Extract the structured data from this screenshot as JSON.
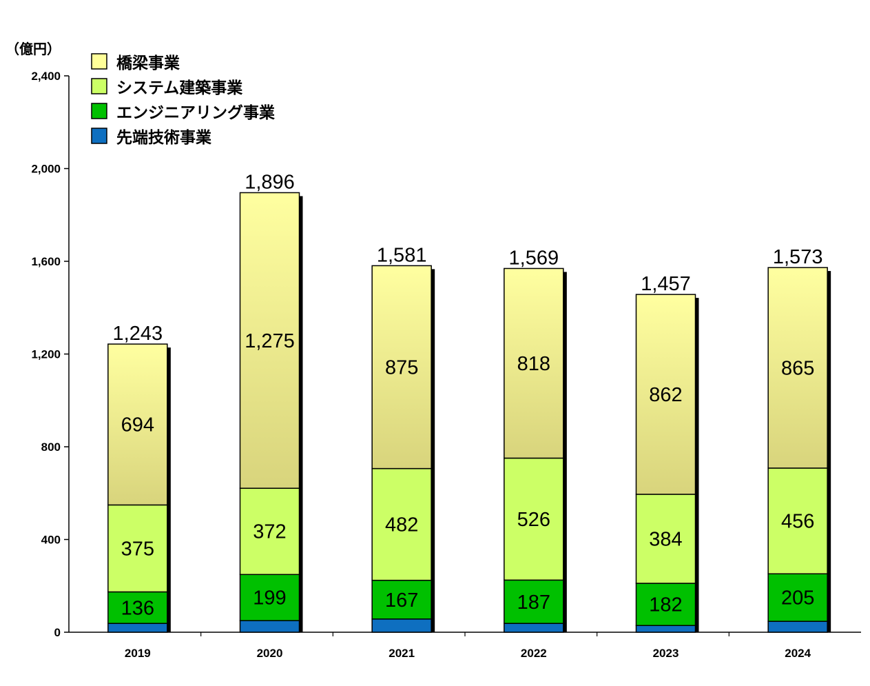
{
  "chart_data": {
    "type": "bar",
    "stacked": true,
    "unit_label": "（億円）",
    "categories": [
      "2019",
      "2020",
      "2021",
      "2022",
      "2023",
      "2024"
    ],
    "series": [
      {
        "name": "先端技術事業",
        "color": "#0e6fc0",
        "values": [
          38,
          50,
          57,
          38,
          29,
          47
        ]
      },
      {
        "name": "エンジニアリング事業",
        "color": "#00c000",
        "values": [
          136,
          199,
          167,
          187,
          182,
          205
        ]
      },
      {
        "name": "システム建築事業",
        "color": "#ccff66",
        "values": [
          375,
          372,
          482,
          526,
          384,
          456
        ]
      },
      {
        "name": "橋梁事業",
        "color": "#ffff99",
        "values": [
          694,
          1275,
          875,
          818,
          862,
          865
        ]
      }
    ],
    "segment_labels": [
      [
        "",
        "",
        "",
        "",
        "",
        ""
      ],
      [
        "136",
        "199",
        "167",
        "187",
        "182",
        "205"
      ],
      [
        "375",
        "372",
        "482",
        "526",
        "384",
        "456"
      ],
      [
        "694",
        "1,275",
        "875",
        "818",
        "862",
        "865"
      ]
    ],
    "totals": [
      "1,243",
      "1,896",
      "1,581",
      "1,569",
      "1,457",
      "1,573"
    ],
    "total_values": [
      1243,
      1896,
      1581,
      1569,
      1457,
      1573
    ],
    "y_ticks": [
      "0",
      "400",
      "800",
      "1,200",
      "1,600",
      "2,000",
      "2,400"
    ],
    "ylim": [
      0,
      2400
    ],
    "legend_order": [
      "橋梁事業",
      "システム建築事業",
      "エンジニアリング事業",
      "先端技術事業"
    ],
    "legend_position": "top-left",
    "grid": false
  }
}
